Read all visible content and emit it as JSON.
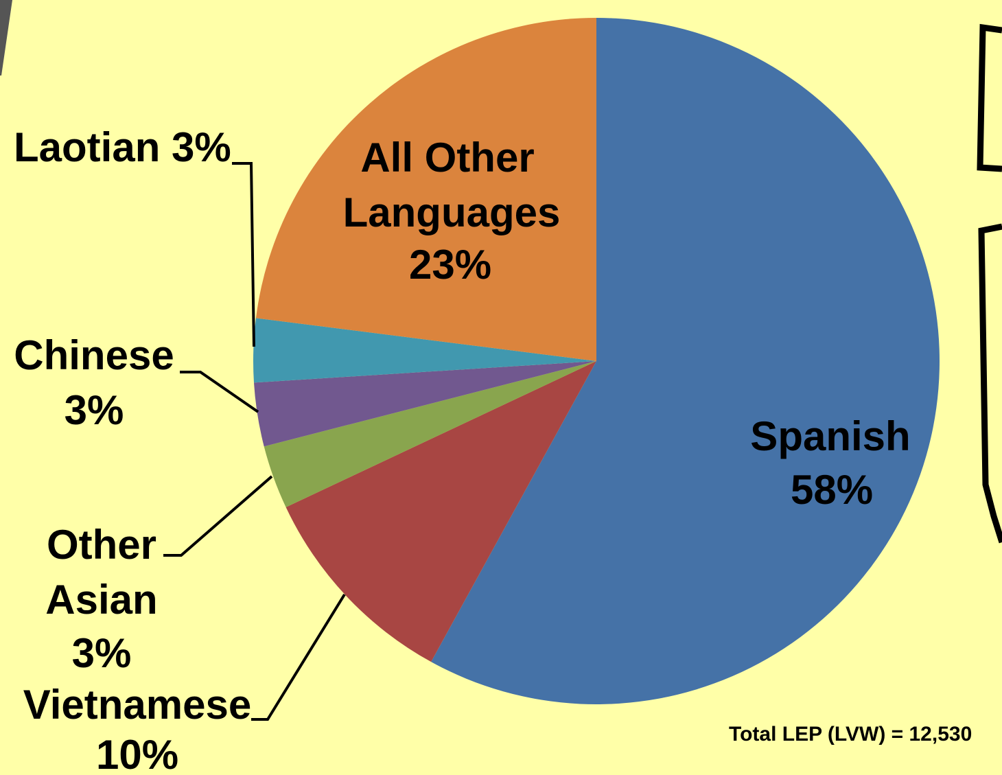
{
  "chart_data": {
    "type": "pie",
    "slices": [
      {
        "label": "Spanish",
        "value": 58,
        "color": "#4572a7"
      },
      {
        "label": "Vietnamese",
        "value": 10,
        "color": "#a84643"
      },
      {
        "label": "Other Asian",
        "value": 3,
        "color": "#89a54e"
      },
      {
        "label": "Chinese",
        "value": 3,
        "color": "#71588f"
      },
      {
        "label": "Laotian",
        "value": 3,
        "color": "#4198af"
      },
      {
        "label": "All Other Languages",
        "value": 23,
        "color": "#db843d"
      }
    ],
    "labels": {
      "spanish": [
        "Spanish",
        "58%"
      ],
      "vietnamese": [
        "Vietnamese",
        "10%"
      ],
      "other_asian": [
        "Other",
        "Asian",
        "3%"
      ],
      "chinese": [
        "Chinese",
        "3%"
      ],
      "laotian": [
        "Laotian 3%"
      ],
      "all_other": [
        "All Other",
        "Languages",
        "23%"
      ]
    },
    "annotation": "Total LEP (LVW) = 12,530"
  }
}
